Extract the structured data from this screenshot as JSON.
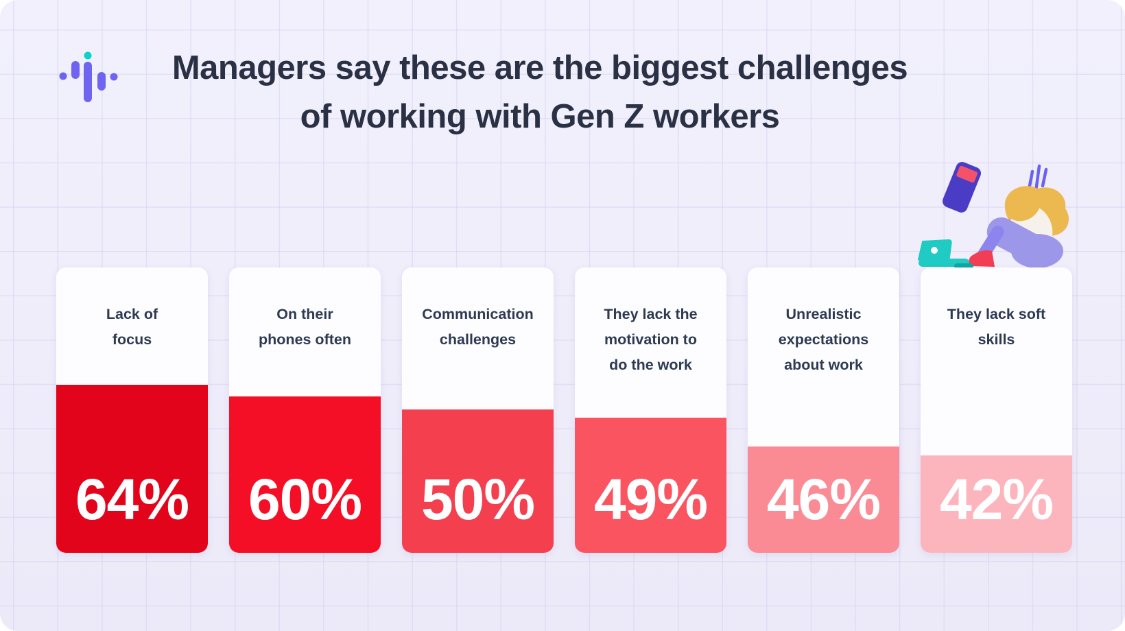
{
  "page": {
    "background_color": "#EFEDFA",
    "grid_line_color": "#CBC6EE"
  },
  "header": {
    "title_line1": "Managers say these are the biggest challenges",
    "title_line2": "of working with Gen Z workers",
    "title_color": "#2A3144"
  },
  "logo": {
    "name": "soundwave-logo",
    "purple": "#6E64F1",
    "teal": "#09D3CB"
  },
  "chart_data": {
    "type": "bar",
    "title": "Managers say these are the biggest challenges of working with Gen Z workers",
    "categories": [
      "Lack of focus",
      "On their phones often",
      "Communication challenges",
      "They lack the motivation to do the work",
      "Unrealistic expectations about work",
      "They lack soft skills"
    ],
    "values": [
      64,
      60,
      50,
      49,
      46,
      42
    ],
    "value_labels": [
      "64%",
      "60%",
      "50%",
      "49%",
      "46%",
      "42%"
    ],
    "unit": "%",
    "orientation": "vertical-card-fill",
    "bar_colors": [
      "#E2041B",
      "#F50F26",
      "#F43F4F",
      "#F95460",
      "#FA8A94",
      "#FDB5BD"
    ],
    "value_label_color": "#FFFFFF",
    "category_label_color": "#2D3A51",
    "legend": "none",
    "grid": "faint lavender grid on background"
  },
  "cards": [
    {
      "label": "Lack of\nfocus",
      "value": "64%",
      "fill_color": "#E2041B",
      "fill_ratio": 0.589
    },
    {
      "label": "On their\nphones often",
      "value": "60%",
      "fill_color": "#F50F26",
      "fill_ratio": 0.548
    },
    {
      "label": "Communication\nchallenges",
      "value": "50%",
      "fill_color": "#F43F4F",
      "fill_ratio": 0.502
    },
    {
      "label": "They lack the\nmotivation to\ndo the work",
      "value": "49%",
      "fill_color": "#F95460",
      "fill_ratio": 0.474
    },
    {
      "label": "Unrealistic\nexpectations\nabout work",
      "value": "46%",
      "fill_color": "#FA8A94",
      "fill_ratio": 0.373
    },
    {
      "label": "They lack soft\nskills",
      "value": "42%",
      "fill_color": "#FDB5BD",
      "fill_ratio": 0.341
    }
  ],
  "illustration": {
    "description": "stressed person sitting with head on knees, floating phone, stress lines, laptop",
    "hair_color": "#ECB850",
    "shirt_color": "#F6F1EB",
    "pants_color": "#9D97E9",
    "back_leg_color": "#8C85EE",
    "shoe_color": "#F23D55",
    "laptop_color": "#1FCBC3",
    "laptop_foot_color": "#10A5A2",
    "phone_color": "#4B3CC6",
    "phone_screen_color": "#F4516B",
    "stress_line_color": "#6B62EF"
  }
}
